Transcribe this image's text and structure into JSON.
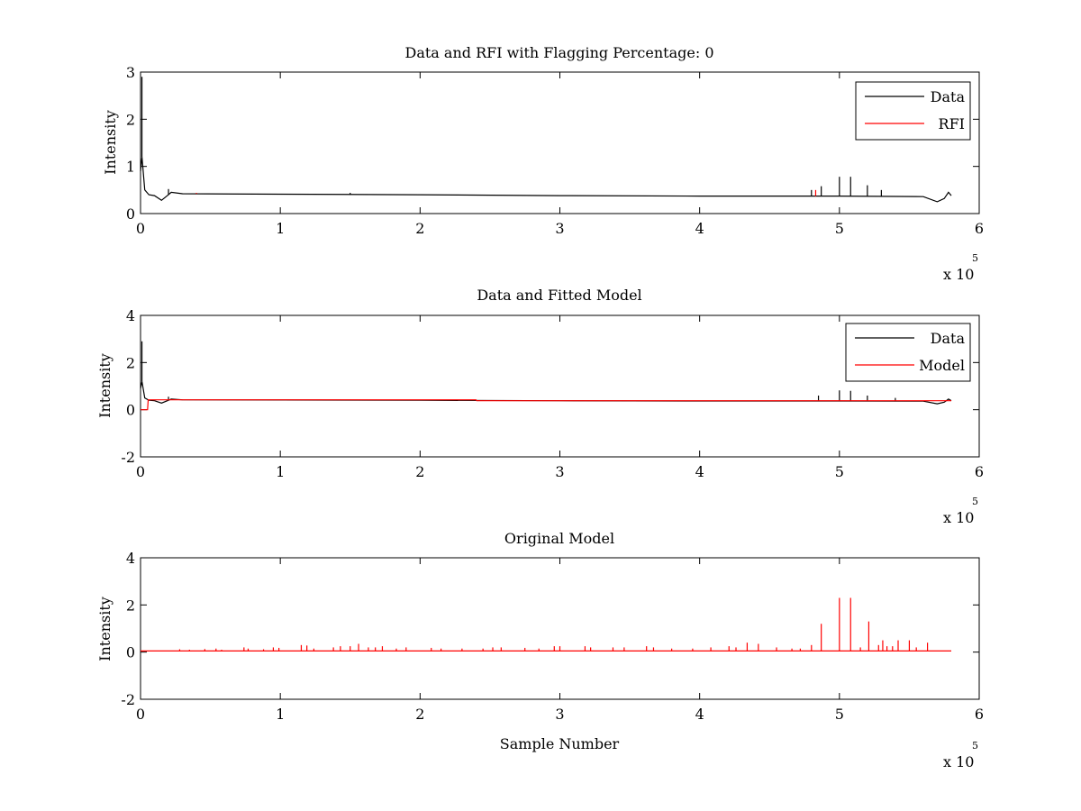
{
  "chart_data": [
    {
      "type": "line",
      "title": "Data and RFI with Flagging Percentage: 0",
      "xlabel": "",
      "ylabel": "Intensity",
      "xlim": [
        0,
        600000
      ],
      "ylim": [
        0,
        3
      ],
      "xticks": [
        "0",
        "1",
        "2",
        "3",
        "4",
        "5",
        "6"
      ],
      "yticks": [
        "0",
        "1",
        "2",
        "3"
      ],
      "x_multiplier": {
        "base": "x 10",
        "exp": "5"
      },
      "grid": false,
      "legend_position": "top-right",
      "series": [
        {
          "name": "Data",
          "color": "#000000",
          "baseline": [
            [
              0,
              0.9
            ],
            [
              1000,
              1.2
            ],
            [
              3000,
              0.5
            ],
            [
              6000,
              0.4
            ],
            [
              10000,
              0.38
            ],
            [
              15000,
              0.28
            ],
            [
              20000,
              0.4
            ],
            [
              22000,
              0.45
            ],
            [
              30000,
              0.42
            ],
            [
              100000,
              0.41
            ],
            [
              200000,
              0.4
            ],
            [
              300000,
              0.38
            ],
            [
              400000,
              0.37
            ],
            [
              500000,
              0.37
            ],
            [
              560000,
              0.36
            ],
            [
              570000,
              0.25
            ],
            [
              575000,
              0.32
            ],
            [
              578000,
              0.45
            ],
            [
              580000,
              0.38
            ]
          ],
          "spikes": [
            [
              1000,
              2.9
            ],
            [
              20000,
              0.52
            ],
            [
              150000,
              0.44
            ],
            [
              480000,
              0.5
            ],
            [
              487000,
              0.58
            ],
            [
              500000,
              0.78
            ],
            [
              508000,
              0.78
            ],
            [
              520000,
              0.6
            ],
            [
              530000,
              0.5
            ]
          ]
        },
        {
          "name": "RFI",
          "color": "#ff0000",
          "baseline": [],
          "spikes": [
            [
              40000,
              0.44
            ],
            [
              483000,
              0.5
            ]
          ]
        }
      ]
    },
    {
      "type": "line",
      "title": "Data and Fitted Model",
      "xlabel": "",
      "ylabel": "Intensity",
      "xlim": [
        0,
        600000
      ],
      "ylim": [
        -2,
        4
      ],
      "xticks": [
        "0",
        "1",
        "2",
        "3",
        "4",
        "5",
        "6"
      ],
      "yticks": [
        "-2",
        "0",
        "2",
        "4"
      ],
      "x_multiplier": {
        "base": "x 10",
        "exp": "5"
      },
      "grid": false,
      "legend_position": "top-right",
      "series": [
        {
          "name": "Data",
          "color": "#000000",
          "baseline": [
            [
              0,
              0.9
            ],
            [
              1000,
              1.2
            ],
            [
              3000,
              0.5
            ],
            [
              6000,
              0.4
            ],
            [
              10000,
              0.38
            ],
            [
              15000,
              0.28
            ],
            [
              20000,
              0.4
            ],
            [
              22000,
              0.45
            ],
            [
              30000,
              0.42
            ],
            [
              100000,
              0.41
            ],
            [
              200000,
              0.4
            ],
            [
              300000,
              0.38
            ],
            [
              400000,
              0.37
            ],
            [
              500000,
              0.37
            ],
            [
              560000,
              0.36
            ],
            [
              570000,
              0.25
            ],
            [
              575000,
              0.32
            ],
            [
              578000,
              0.45
            ],
            [
              580000,
              0.38
            ]
          ],
          "spikes": [
            [
              1000,
              2.9
            ],
            [
              20000,
              0.55
            ],
            [
              485000,
              0.6
            ],
            [
              500000,
              0.82
            ],
            [
              508000,
              0.8
            ],
            [
              520000,
              0.6
            ],
            [
              540000,
              0.5
            ]
          ]
        },
        {
          "name": "Model",
          "color": "#ff0000",
          "baseline": [
            [
              0,
              0.0
            ],
            [
              5000,
              0.0
            ],
            [
              5500,
              0.42
            ],
            [
              240000,
              0.42
            ],
            [
              240500,
              0.38
            ],
            [
              580000,
              0.38
            ]
          ],
          "spikes": []
        }
      ]
    },
    {
      "type": "line",
      "title": "Original Model",
      "xlabel": "Sample Number",
      "ylabel": "Intensity",
      "xlim": [
        0,
        600000
      ],
      "ylim": [
        -2,
        4
      ],
      "xticks": [
        "0",
        "1",
        "2",
        "3",
        "4",
        "5",
        "6"
      ],
      "yticks": [
        "-2",
        "0",
        "2",
        "4"
      ],
      "x_multiplier": {
        "base": "x 10",
        "exp": "5"
      },
      "grid": false,
      "legend_position": "none",
      "series": [
        {
          "name": "",
          "color": "#ff0000",
          "baseline": [
            [
              0,
              0.05
            ],
            [
              580000,
              0.05
            ]
          ],
          "spikes": [
            [
              28000,
              0.12
            ],
            [
              35000,
              0.1
            ],
            [
              46000,
              0.13
            ],
            [
              54000,
              0.15
            ],
            [
              58000,
              0.1
            ],
            [
              74000,
              0.2
            ],
            [
              77000,
              0.15
            ],
            [
              88000,
              0.12
            ],
            [
              95000,
              0.2
            ],
            [
              99000,
              0.18
            ],
            [
              115000,
              0.3
            ],
            [
              119000,
              0.28
            ],
            [
              124000,
              0.15
            ],
            [
              138000,
              0.2
            ],
            [
              143000,
              0.25
            ],
            [
              150000,
              0.25
            ],
            [
              156000,
              0.35
            ],
            [
              163000,
              0.2
            ],
            [
              168000,
              0.2
            ],
            [
              173000,
              0.25
            ],
            [
              183000,
              0.15
            ],
            [
              190000,
              0.2
            ],
            [
              208000,
              0.18
            ],
            [
              215000,
              0.15
            ],
            [
              230000,
              0.15
            ],
            [
              245000,
              0.15
            ],
            [
              252000,
              0.2
            ],
            [
              258000,
              0.2
            ],
            [
              275000,
              0.18
            ],
            [
              285000,
              0.15
            ],
            [
              296000,
              0.25
            ],
            [
              300000,
              0.25
            ],
            [
              318000,
              0.25
            ],
            [
              322000,
              0.2
            ],
            [
              338000,
              0.2
            ],
            [
              346000,
              0.2
            ],
            [
              362000,
              0.25
            ],
            [
              367000,
              0.2
            ],
            [
              380000,
              0.15
            ],
            [
              395000,
              0.15
            ],
            [
              408000,
              0.2
            ],
            [
              421000,
              0.25
            ],
            [
              426000,
              0.2
            ],
            [
              434000,
              0.4
            ],
            [
              442000,
              0.35
            ],
            [
              455000,
              0.2
            ],
            [
              466000,
              0.15
            ],
            [
              472000,
              0.15
            ],
            [
              480000,
              0.3
            ],
            [
              487000,
              1.2
            ],
            [
              500000,
              2.3
            ],
            [
              508000,
              2.3
            ],
            [
              515000,
              0.2
            ],
            [
              521000,
              1.3
            ],
            [
              528000,
              0.3
            ],
            [
              531000,
              0.5
            ],
            [
              534000,
              0.25
            ],
            [
              538000,
              0.25
            ],
            [
              542000,
              0.5
            ],
            [
              550000,
              0.5
            ],
            [
              555000,
              0.2
            ],
            [
              563000,
              0.4
            ]
          ]
        }
      ]
    }
  ]
}
